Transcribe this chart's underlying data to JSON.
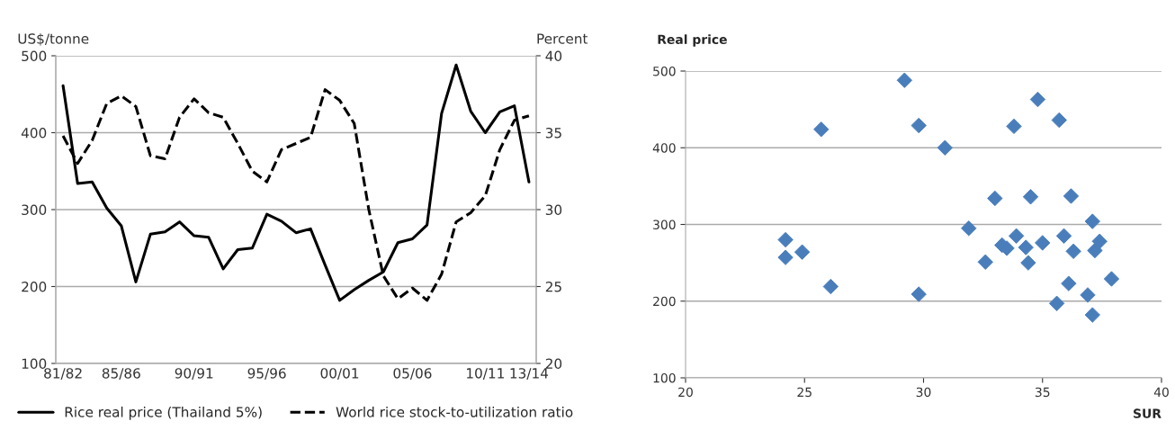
{
  "chart_data": [
    {
      "type": "line",
      "categories": [
        "81/82",
        null,
        null,
        null,
        "85/86",
        null,
        null,
        null,
        null,
        "90/91",
        null,
        null,
        null,
        null,
        "95/96",
        null,
        null,
        null,
        null,
        "00/01",
        null,
        null,
        null,
        null,
        "05/06",
        null,
        null,
        null,
        null,
        "10/11",
        null,
        null,
        "13/14"
      ],
      "ylabel": "US$/tonne",
      "y2label": "Percent",
      "ylim": [
        100,
        500
      ],
      "yticks": [
        100,
        200,
        300,
        400,
        500
      ],
      "y2lim": [
        20,
        40
      ],
      "y2ticks": [
        20,
        25,
        30,
        35,
        40
      ],
      "grid": "y",
      "legend": "bottom",
      "series": [
        {
          "name": "Rice real price (Thailand 5%)",
          "color": "#000000",
          "line_style": "solid",
          "values": [
            461,
            334,
            336,
            302,
            279,
            206,
            268,
            271,
            284,
            266,
            264,
            223,
            248,
            250,
            294,
            285,
            270,
            275,
            228,
            182,
            196,
            208,
            219,
            257,
            262,
            280,
            425,
            488,
            428,
            400,
            427,
            435,
            336
          ]
        },
        {
          "name": "World rice stock-to-utilization ratio",
          "color": "#000000",
          "line_style": "dashed",
          "axis": "y2",
          "values": [
            34.8,
            33.0,
            34.5,
            36.9,
            37.4,
            36.7,
            33.5,
            33.3,
            36.0,
            37.2,
            36.3,
            36.0,
            34.3,
            32.5,
            31.8,
            33.9,
            34.3,
            34.7,
            37.8,
            37.1,
            35.6,
            30.0,
            25.7,
            24.2,
            24.9,
            24.1,
            25.8,
            29.2,
            29.8,
            30.9,
            33.9,
            35.8,
            36.1
          ]
        }
      ]
    },
    {
      "type": "scatter",
      "xlabel": "SUR",
      "ylabel": "Real price",
      "xlim": [
        20,
        40
      ],
      "xticks": [
        20,
        25,
        30,
        35,
        40
      ],
      "ylim": [
        100,
        500
      ],
      "yticks": [
        100,
        200,
        300,
        400,
        500
      ],
      "grid": "y",
      "marker": "diamond",
      "color": "#4a7ebb",
      "x": [
        25.7,
        24.2,
        24.2,
        24.9,
        26.1,
        29.2,
        29.8,
        29.8,
        30.9,
        31.9,
        33.0,
        32.6,
        33.3,
        33.5,
        33.9,
        33.8,
        34.5,
        34.3,
        34.4,
        34.8,
        35.0,
        35.7,
        35.9,
        36.2,
        36.1,
        36.3,
        35.6,
        37.1,
        37.4,
        37.2,
        36.9,
        37.1,
        37.9
      ],
      "values": [
        424,
        280,
        257,
        264,
        219,
        488,
        429,
        209,
        400,
        295,
        334,
        251,
        273,
        269,
        285,
        428,
        336,
        270,
        250,
        463,
        276,
        436,
        285,
        337,
        223,
        265,
        197,
        304,
        278,
        266,
        208,
        182,
        229
      ]
    }
  ]
}
